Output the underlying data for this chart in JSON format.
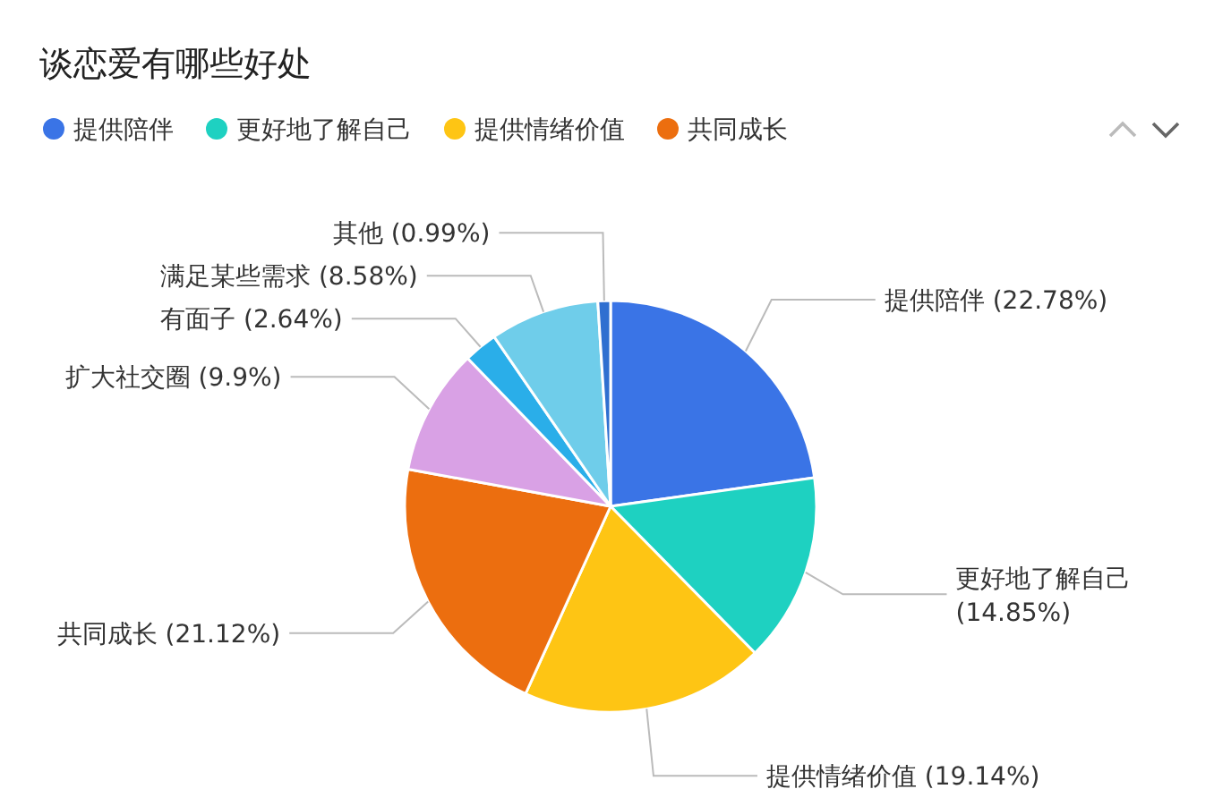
{
  "chart_data": {
    "type": "pie",
    "title": "谈恋爱有哪些好处",
    "legend": "top left",
    "categories": [
      "提供陪伴",
      "更好地了解自己",
      "提供情绪价值",
      "共同成长",
      "扩大社交圈",
      "有面子",
      "满足某些需求",
      "其他"
    ],
    "values": [
      22.78,
      14.85,
      19.14,
      21.12,
      9.9,
      2.64,
      8.58,
      0.99
    ],
    "colors": [
      "#3a74e6",
      "#1ed1c1",
      "#fec514",
      "#ec6e0f",
      "#d9a1e5",
      "#2aaee9",
      "#6fcdea",
      "#2f6fd0"
    ],
    "value_labels": [
      "(22.78%)",
      "(14.85%)",
      "(19.14%)",
      "(21.12%)",
      "(9.9%)",
      "(2.64%)",
      "(8.58%)",
      "(0.99%)"
    ]
  }
}
